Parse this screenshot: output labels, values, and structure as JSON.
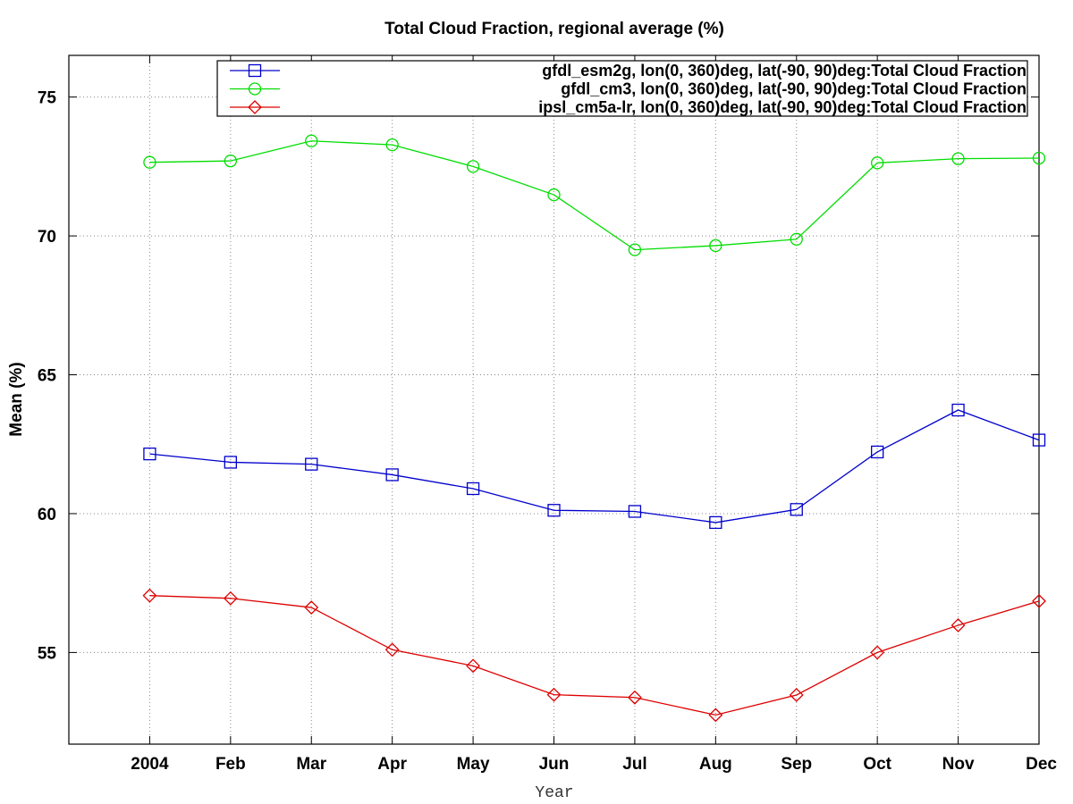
{
  "chart_data": {
    "type": "line",
    "title": "Total Cloud Fraction, regional average (%)",
    "xlabel": "Year",
    "ylabel": "Mean (%)",
    "categories": [
      "2004",
      "Feb",
      "Mar",
      "Apr",
      "May",
      "Jun",
      "Jul",
      "Aug",
      "Sep",
      "Oct",
      "Nov",
      "Dec"
    ],
    "ylim": [
      51.7,
      76.5
    ],
    "yticks": [
      55,
      60,
      65,
      70,
      75
    ],
    "x_extra_left_slot": true,
    "grid": true,
    "legend_position": "top-right",
    "series": [
      {
        "name": "gfdl_esm2g, lon(0, 360)deg, lat(-90, 90)deg:Total Cloud Fraction",
        "color": "#0000cc",
        "marker": "square",
        "values": [
          62.15,
          61.85,
          61.78,
          61.4,
          60.9,
          60.12,
          60.08,
          59.68,
          60.15,
          62.22,
          63.73,
          62.65
        ]
      },
      {
        "name": "gfdl_cm3, lon(0, 360)deg, lat(-90, 90)deg:Total Cloud Fraction",
        "color": "#00dd00",
        "marker": "circle",
        "values": [
          72.65,
          72.7,
          73.42,
          73.28,
          72.5,
          71.48,
          69.5,
          69.65,
          69.88,
          72.63,
          72.78,
          72.8
        ]
      },
      {
        "name": "ipsl_cm5a-lr, lon(0, 360)deg, lat(-90, 90)deg:Total Cloud Fraction",
        "color": "#dd0000",
        "marker": "diamond",
        "values": [
          57.05,
          56.95,
          56.62,
          55.1,
          54.52,
          53.48,
          53.38,
          52.75,
          53.47,
          55.0,
          55.98,
          56.85
        ]
      }
    ]
  }
}
